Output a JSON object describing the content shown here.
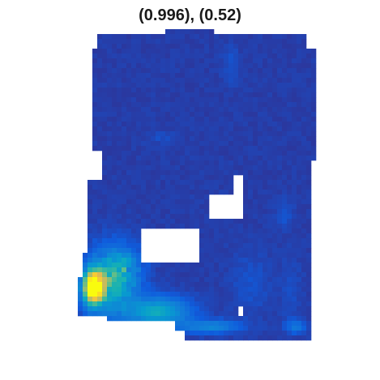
{
  "chart_data": {
    "type": "heatmap",
    "title": "(0.996), (0.52)",
    "xlabel": "",
    "ylabel": "",
    "axes_visible": false,
    "colormap": "parula",
    "value_range": [
      0,
      1
    ],
    "grid": false,
    "background_value": 0.04,
    "hotspots": [
      {
        "region": "bottom-left",
        "peak": 1.0
      },
      {
        "region": "lower-center",
        "peak": 0.45
      }
    ],
    "colors": {
      "low": "#3a2fa8",
      "mid": "#2a9ef0",
      "high": "#f7e33a",
      "missing": "#ffffff"
    }
  }
}
